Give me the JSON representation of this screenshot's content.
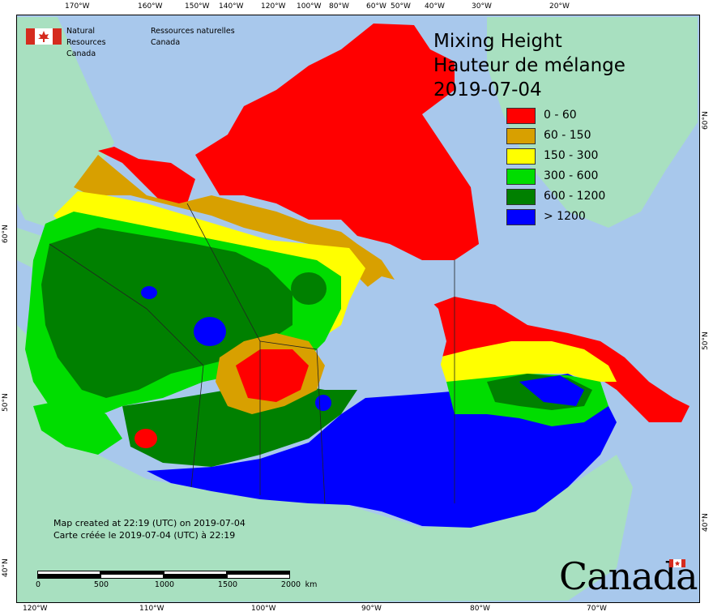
{
  "map": {
    "title_line1": "Mixing Height",
    "title_line2": "Hauteur de mélange",
    "date": "2019-07-04",
    "org_en": "Natural Resources Canada",
    "org_fr": "Ressources naturelles Canada",
    "created_en": "Map created at 22:19 (UTC) on 2019-07-04",
    "created_fr": "Carte créée le 2019-07-04 (UTC) à 22:19",
    "wordmark": "Canada",
    "scale_labels": [
      "0",
      "500",
      "1000",
      "1500",
      "2000"
    ],
    "scale_unit": "km",
    "legend": [
      {
        "label": "0 - 60",
        "color": "#ff0000"
      },
      {
        "label": "60 - 150",
        "color": "#d8a000"
      },
      {
        "label": "150 - 300",
        "color": "#ffff00"
      },
      {
        "label": "300 - 600",
        "color": "#00dd00"
      },
      {
        "label": "600 - 1200",
        "color": "#008000"
      },
      {
        "label": "> 1200",
        "color": "#0000ff"
      }
    ],
    "colors": {
      "ocean": "#a8c8ec",
      "foreign_land": "#a8e0c0"
    },
    "top_ticks": [
      "170°W",
      "160°W",
      "150°W",
      "140°W",
      "120°W",
      "100°W",
      "80°W",
      "60°W",
      "50°W",
      "40°W",
      "30°W",
      "20°W"
    ],
    "bottom_ticks": [
      "120°W",
      "110°W",
      "100°W",
      "90°W",
      "80°W",
      "70°W"
    ],
    "left_ticks": [
      "60°N",
      "50°N",
      "40°N"
    ],
    "right_ticks": [
      "60°N",
      "50°N",
      "40°N"
    ]
  }
}
